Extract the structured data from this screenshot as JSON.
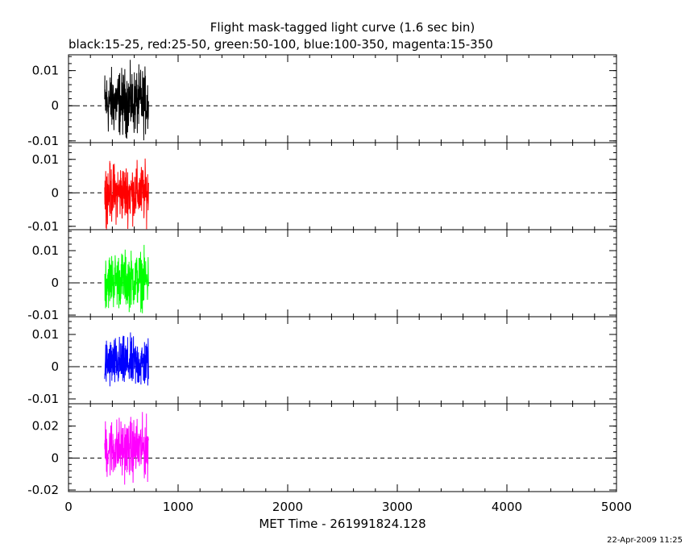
{
  "title": "Flight mask-tagged light curve (1.6 sec bin)",
  "subtitle": "black:15-25, red:25-50, green:50-100, blue:100-350, magenta:15-350",
  "xlabel": "MET Time - 261991824.128",
  "timestamp": "22-Apr-2009 11:25",
  "chart_data": {
    "type": "line",
    "title": "Flight mask-tagged light curve (1.6 sec bin)",
    "subtitle": "black:15-25, red:25-50, green:50-100, blue:100-350, magenta:15-350",
    "xlabel": "MET Time - 261991824.128",
    "xlim": [
      0,
      5000
    ],
    "x_ticks": [
      0,
      1000,
      2000,
      3000,
      4000,
      5000
    ],
    "x_tick_labels": [
      "0",
      "1000",
      "2000",
      "3000",
      "4000",
      "5000"
    ],
    "data_x_range": [
      330,
      730
    ],
    "bin_seconds": 1.6,
    "zero_line": "dashed",
    "panels": [
      {
        "name": "15-25",
        "color": "#000000",
        "ylim": [
          -0.0105,
          0.0145
        ],
        "y_ticks": [
          -0.01,
          0,
          0.01
        ],
        "y_tick_labels": [
          "-0.01",
          "0",
          "0.01"
        ],
        "center": 0.001,
        "amplitude": 0.0135
      },
      {
        "name": "25-50",
        "color": "#ff0000",
        "ylim": [
          -0.011,
          0.015
        ],
        "y_ticks": [
          -0.01,
          0,
          0.01
        ],
        "y_tick_labels": [
          "-0.01",
          "0",
          "0.01"
        ],
        "center": 0.0,
        "amplitude": 0.0125
      },
      {
        "name": "50-100",
        "color": "#00ff00",
        "ylim": [
          -0.0105,
          0.0165
        ],
        "y_ticks": [
          -0.01,
          0,
          0.01
        ],
        "y_tick_labels": [
          "-0.01",
          "0",
          "0.01"
        ],
        "center": 0.001,
        "amplitude": 0.0125
      },
      {
        "name": "100-350",
        "color": "#0000ff",
        "ylim": [
          -0.0115,
          0.0155
        ],
        "y_ticks": [
          -0.01,
          0,
          0.01
        ],
        "y_tick_labels": [
          "-0.01",
          "0",
          "0.01"
        ],
        "center": 0.001,
        "amplitude": 0.0115
      },
      {
        "name": "15-350",
        "color": "#ff00ff",
        "ylim": [
          -0.021,
          0.034
        ],
        "y_ticks": [
          -0.02,
          0,
          0.02
        ],
        "y_tick_labels": [
          "-0.02",
          "0",
          "0.02"
        ],
        "center": 0.006,
        "amplitude": 0.027
      }
    ]
  }
}
